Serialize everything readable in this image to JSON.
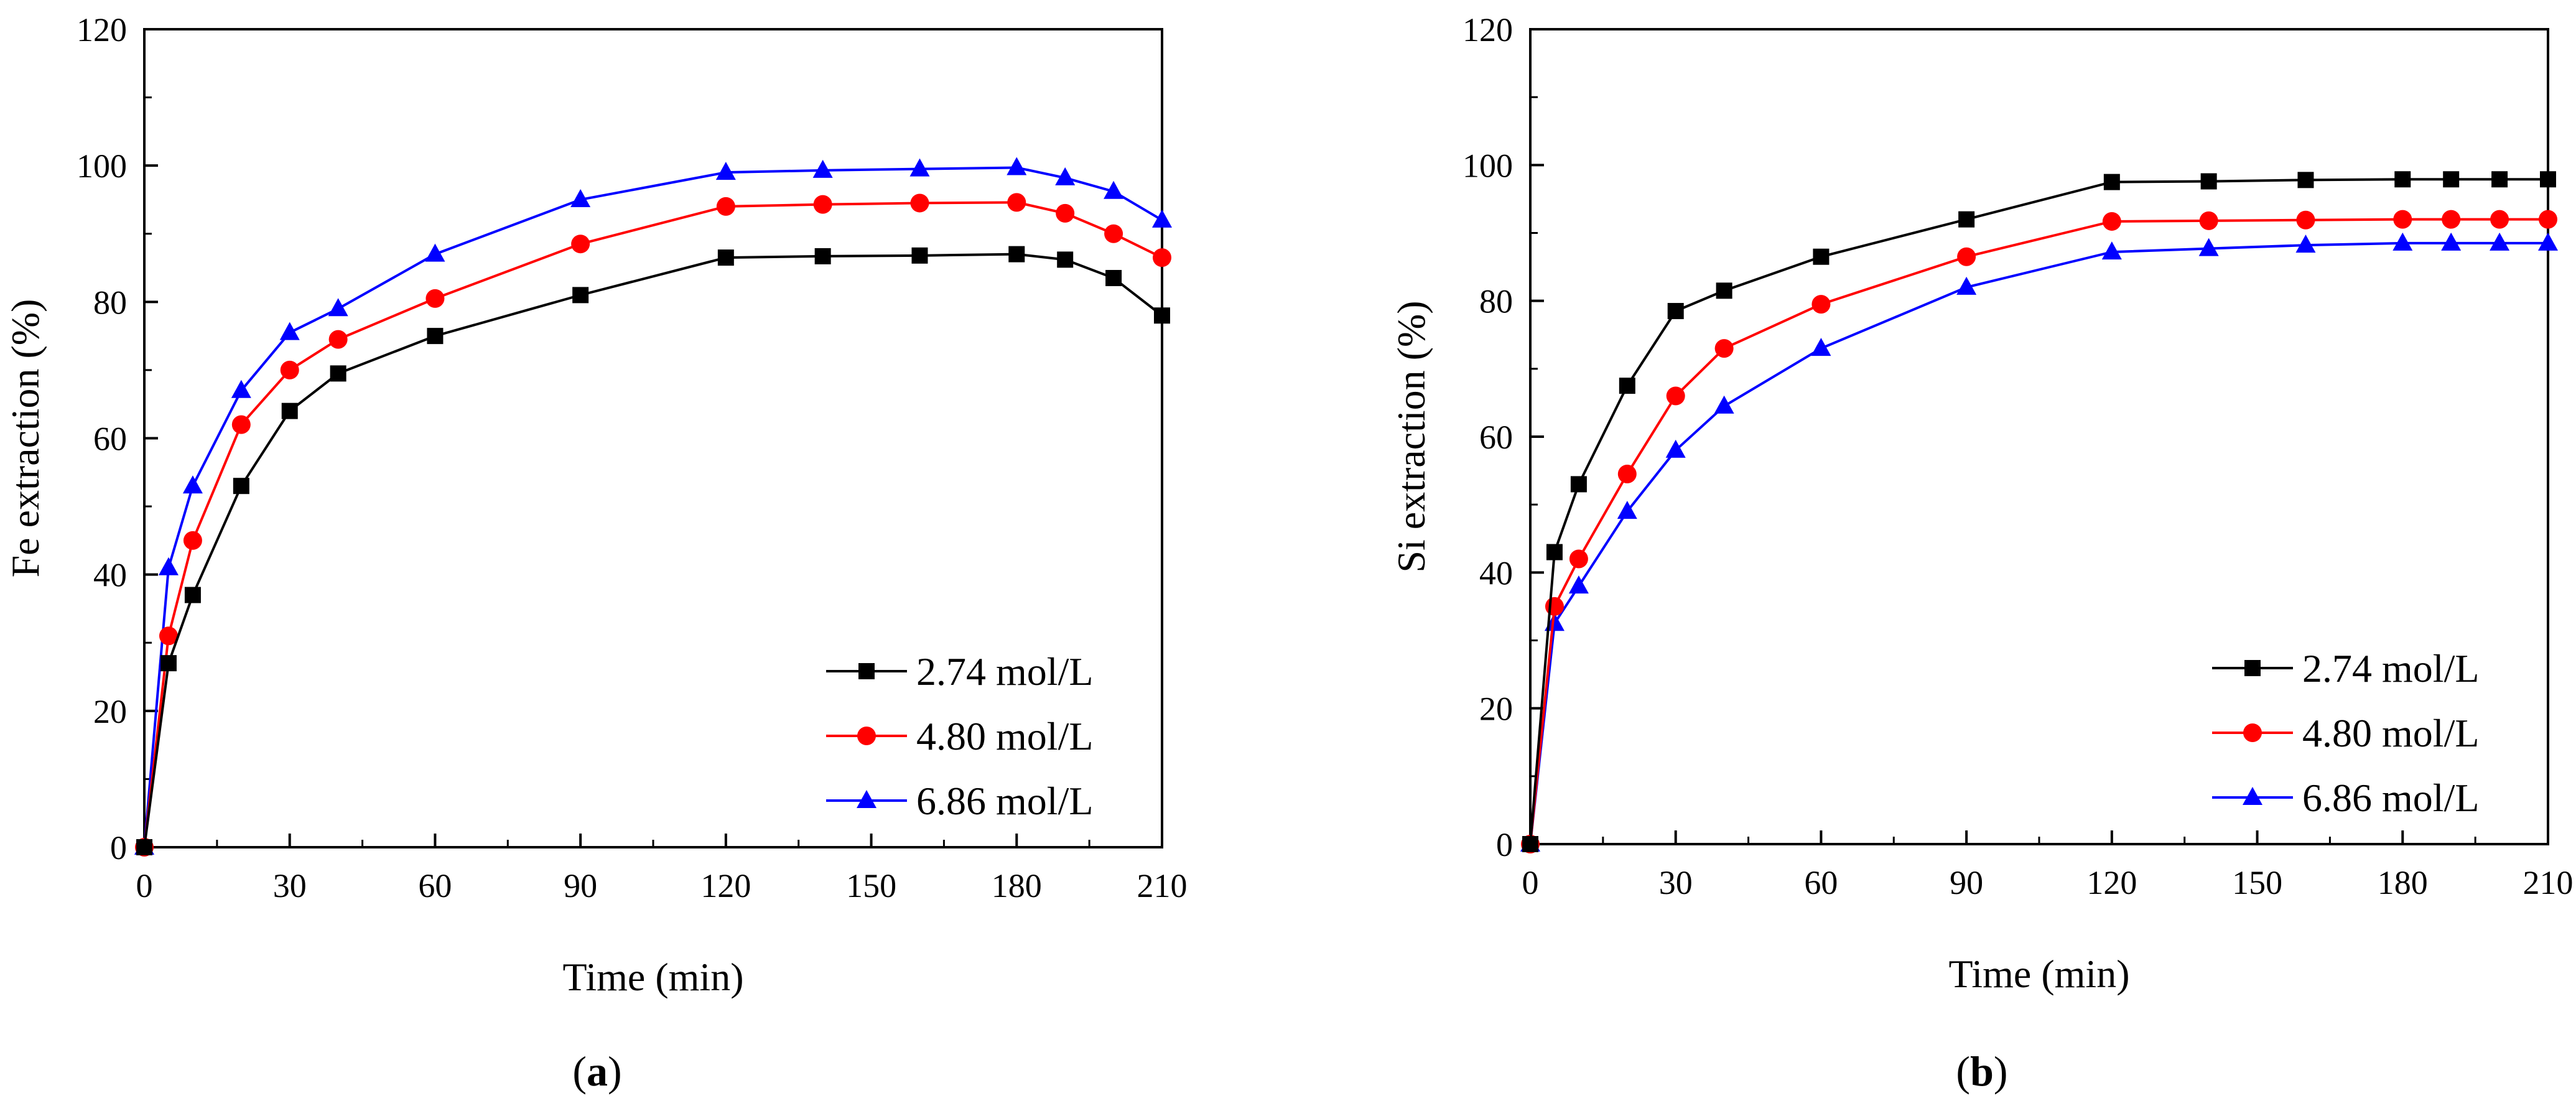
{
  "chart_data": [
    {
      "type": "line",
      "panel_label": "a",
      "xlabel": "Time (min)",
      "ylabel": "Fe extraction (%)",
      "xlim": [
        0,
        210
      ],
      "ylim": [
        0,
        120
      ],
      "xticks": [
        0,
        30,
        60,
        90,
        120,
        150,
        180,
        210
      ],
      "yticks": [
        0,
        20,
        40,
        60,
        80,
        100,
        120
      ],
      "legend_position": "bottom-right",
      "grid": false,
      "x": [
        0,
        5,
        10,
        20,
        30,
        40,
        60,
        90,
        120,
        140,
        160,
        180,
        190,
        200,
        210
      ],
      "series": [
        {
          "name": "2.74 mol/L",
          "color": "#000000",
          "marker": "square",
          "values": [
            0,
            27,
            37,
            53,
            64,
            69.5,
            75,
            81,
            86.5,
            86.7,
            86.8,
            87,
            86.2,
            83.5,
            78
          ]
        },
        {
          "name": "4.80 mol/L",
          "color": "#ff0000",
          "marker": "circle",
          "values": [
            0,
            31,
            45,
            62,
            70,
            74.5,
            80.5,
            88.5,
            94,
            94.3,
            94.5,
            94.6,
            93,
            90,
            86.5
          ]
        },
        {
          "name": "6.86 mol/L",
          "color": "#0000ff",
          "marker": "triangle",
          "values": [
            0,
            41,
            53,
            67,
            75.5,
            79,
            87,
            95,
            99,
            99.3,
            99.5,
            99.7,
            98.2,
            96.2,
            92
          ]
        }
      ]
    },
    {
      "type": "line",
      "panel_label": "b",
      "xlabel": "Time (min)",
      "ylabel": "Si extraction (%)",
      "xlim": [
        0,
        210
      ],
      "ylim": [
        0,
        120
      ],
      "xticks": [
        0,
        30,
        60,
        90,
        120,
        150,
        180,
        210
      ],
      "yticks": [
        0,
        20,
        40,
        60,
        80,
        100,
        120
      ],
      "legend_position": "bottom-right",
      "grid": false,
      "x": [
        0,
        5,
        10,
        20,
        30,
        40,
        60,
        90,
        120,
        140,
        160,
        180,
        190,
        200,
        210
      ],
      "series": [
        {
          "name": "2.74 mol/L",
          "color": "#000000",
          "marker": "square",
          "values": [
            0,
            43,
            53,
            67.5,
            78.5,
            81.5,
            86.5,
            92,
            97.5,
            97.6,
            97.8,
            97.9,
            97.9,
            97.9,
            97.9
          ]
        },
        {
          "name": "4.80 mol/L",
          "color": "#ff0000",
          "marker": "circle",
          "values": [
            0,
            35,
            42,
            54.5,
            66,
            73,
            79.5,
            86.5,
            91.7,
            91.8,
            91.9,
            92,
            92,
            92,
            92
          ]
        },
        {
          "name": "6.86 mol/L",
          "color": "#0000ff",
          "marker": "triangle",
          "values": [
            0,
            32.5,
            38,
            49,
            58,
            64.5,
            73,
            82,
            87.2,
            87.7,
            88.2,
            88.5,
            88.5,
            88.5,
            88.5
          ]
        }
      ]
    }
  ]
}
